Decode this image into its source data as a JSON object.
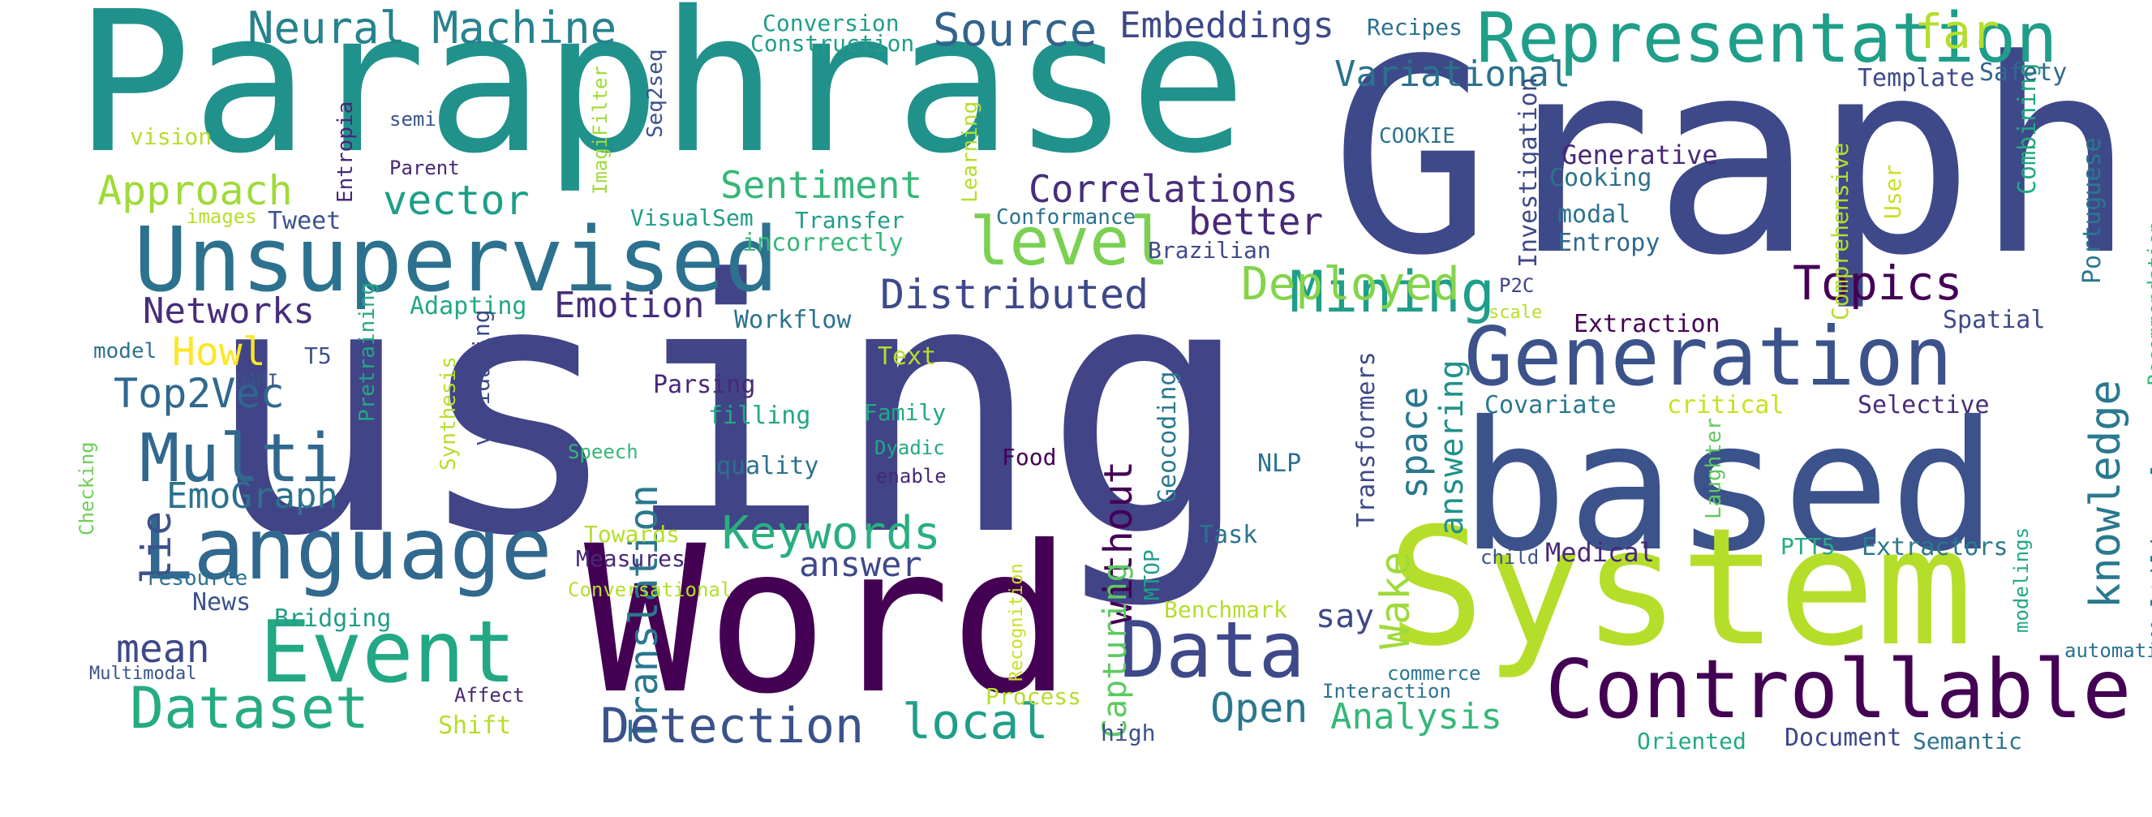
{
  "palette": {
    "dark_purple": "#440154",
    "purple": "#482878",
    "indigo": "#3e4989",
    "blue": "#31688e",
    "teal_blue": "#26828e",
    "teal": "#1f9e89",
    "green": "#35b779",
    "lime": "#6ece58",
    "yellow_green": "#b5de2b",
    "yellow": "#fde725"
  },
  "words": [
    {
      "text": "Paraphrase",
      "color": "#21918c"
    },
    {
      "text": "Graph",
      "color": "#3e4989"
    },
    {
      "text": "using",
      "color": "#414487"
    },
    {
      "text": "based",
      "color": "#3b528b"
    },
    {
      "text": "Word",
      "color": "#440154"
    },
    {
      "text": "System",
      "color": "#b5de2b"
    },
    {
      "text": "Unsupervised",
      "color": "#2c728e"
    },
    {
      "text": "Language",
      "color": "#31688e"
    },
    {
      "text": "Controllable",
      "color": "#440154"
    },
    {
      "text": "Generation",
      "color": "#3b528b"
    },
    {
      "text": "Representation",
      "color": "#1f9e89"
    },
    {
      "text": "Event",
      "color": "#22a884"
    },
    {
      "text": "Data",
      "color": "#3e4989"
    },
    {
      "text": "Multi",
      "color": "#31688e"
    },
    {
      "text": "Dataset",
      "color": "#25ab82"
    },
    {
      "text": "level",
      "color": "#7ad151"
    },
    {
      "text": "Translation",
      "color": "#2a788e"
    },
    {
      "text": "knowledge",
      "color": "#2a788e"
    },
    {
      "text": "Mining",
      "color": "#1f9e89"
    },
    {
      "text": "Neural Machine",
      "color": "#26828e"
    },
    {
      "text": "Source",
      "color": "#33638d"
    },
    {
      "text": "Embeddings",
      "color": "#3e4989"
    },
    {
      "text": "Variational",
      "color": "#2c728e"
    },
    {
      "text": "far",
      "color": "#b5de2b"
    },
    {
      "text": "Distributed",
      "color": "#3e4989"
    },
    {
      "text": "Deployed",
      "color": "#84d44b"
    },
    {
      "text": "Topics",
      "color": "#440154"
    },
    {
      "text": "Correlations",
      "color": "#472d7b"
    },
    {
      "text": "better",
      "color": "#482878"
    },
    {
      "text": "vector",
      "color": "#1f9e89"
    },
    {
      "text": "Sentiment",
      "color": "#35b779"
    },
    {
      "text": "Approach",
      "color": "#a0da39"
    },
    {
      "text": "Keywords",
      "color": "#29af7f"
    },
    {
      "text": "Detection",
      "color": "#3b528b"
    },
    {
      "text": "local",
      "color": "#1f9e89"
    },
    {
      "text": "Open",
      "color": "#2a788e"
    },
    {
      "text": "Analysis",
      "color": "#35b779"
    },
    {
      "text": "Wake",
      "color": "#9fda3a"
    },
    {
      "text": "space",
      "color": "#2a788e"
    },
    {
      "text": "answering",
      "color": "#21918c"
    },
    {
      "text": "without",
      "color": "#440154"
    },
    {
      "text": "Capturing",
      "color": "#5ec962"
    },
    {
      "text": "Emotion",
      "color": "#472d7b"
    },
    {
      "text": "Networks",
      "color": "#472d7b"
    },
    {
      "text": "Top2Vec",
      "color": "#31688e"
    },
    {
      "text": "EmoGraph",
      "color": "#2c728e"
    },
    {
      "text": "mean",
      "color": "#3e4989"
    },
    {
      "text": "lie",
      "color": "#3b528b"
    },
    {
      "text": "answer",
      "color": "#3e4989"
    },
    {
      "text": "say",
      "color": "#3e4989"
    },
    {
      "text": "Howl",
      "color": "#fde725"
    },
    {
      "text": "Extractors",
      "color": "#2a788e"
    },
    {
      "text": "Medical",
      "color": "#482878"
    },
    {
      "text": "PTT5",
      "color": "#25ab82"
    },
    {
      "text": "Multilingual",
      "color": "#2a788e"
    },
    {
      "text": "Selective",
      "color": "#472d7b"
    },
    {
      "text": "Covariate",
      "color": "#2a788e"
    },
    {
      "text": "critical",
      "color": "#c8e020"
    },
    {
      "text": "Spatial",
      "color": "#3e4989"
    },
    {
      "text": "Extraction",
      "color": "#440154"
    },
    {
      "text": "Generative",
      "color": "#482878"
    },
    {
      "text": "Cooking",
      "color": "#2c728e"
    },
    {
      "text": "modal",
      "color": "#2c728e"
    },
    {
      "text": "Entropy",
      "color": "#31688e"
    },
    {
      "text": "Combining",
      "color": "#22a884"
    },
    {
      "text": "Portuguese",
      "color": "#2a788e"
    },
    {
      "text": "User",
      "color": "#c8e020"
    },
    {
      "text": "Comprehensive",
      "color": "#b5de2b"
    },
    {
      "text": "Investigation",
      "color": "#3e4989"
    },
    {
      "text": "Recommendation",
      "color": "#35b779"
    },
    {
      "text": "Template",
      "color": "#3e4989"
    },
    {
      "text": "Safety",
      "color": "#31688e"
    },
    {
      "text": "Recipes",
      "color": "#2c728e"
    },
    {
      "text": "COOKIE",
      "color": "#2c728e"
    },
    {
      "text": "P2C",
      "color": "#414487"
    },
    {
      "text": "scale",
      "color": "#b5de2b"
    },
    {
      "text": "Transformers",
      "color": "#3e4989"
    },
    {
      "text": "Laughter",
      "color": "#5ec962"
    },
    {
      "text": "modelings",
      "color": "#22a884"
    },
    {
      "text": "automatic",
      "color": "#2c728e"
    },
    {
      "text": "child",
      "color": "#3b528b"
    },
    {
      "text": "commerce",
      "color": "#2a788e"
    },
    {
      "text": "Interaction",
      "color": "#2c728e"
    },
    {
      "text": "Oriented",
      "color": "#22a884"
    },
    {
      "text": "Document",
      "color": "#3e4989"
    },
    {
      "text": "Semantic",
      "color": "#2c728e"
    },
    {
      "text": "Conversion",
      "color": "#1f9e89"
    },
    {
      "text": "Construction",
      "color": "#1f9e89"
    },
    {
      "text": "ImagiFilter",
      "color": "#a0da39"
    },
    {
      "text": "Seq2seq",
      "color": "#3b528b"
    },
    {
      "text": "Learning",
      "color": "#b5de2b"
    },
    {
      "text": "vision",
      "color": "#b5de2b"
    },
    {
      "text": "semi",
      "color": "#3b528b"
    },
    {
      "text": "Entropia",
      "color": "#482878"
    },
    {
      "text": "Parent",
      "color": "#482878"
    },
    {
      "text": "images",
      "color": "#b5de2b"
    },
    {
      "text": "Tweet",
      "color": "#3b528b"
    },
    {
      "text": "VisualSem",
      "color": "#1f9e89"
    },
    {
      "text": "Transfer",
      "color": "#1f9e89"
    },
    {
      "text": "Conformance",
      "color": "#2c728e"
    },
    {
      "text": "Brazilian",
      "color": "#3e4989"
    },
    {
      "text": "incorrectly",
      "color": "#35b779"
    },
    {
      "text": "Adapting",
      "color": "#22a884"
    },
    {
      "text": "Workflow",
      "color": "#2c728e"
    },
    {
      "text": "Text",
      "color": "#b5de2b"
    },
    {
      "text": "Parsing",
      "color": "#482878"
    },
    {
      "text": "filling",
      "color": "#22a884"
    },
    {
      "text": "Family",
      "color": "#22a884"
    },
    {
      "text": "Food",
      "color": "#440154"
    },
    {
      "text": "quality",
      "color": "#2c728e"
    },
    {
      "text": "Dyadic",
      "color": "#22a884"
    },
    {
      "text": "enable",
      "color": "#482878"
    },
    {
      "text": "Speech",
      "color": "#35b779"
    },
    {
      "text": "Towards",
      "color": "#b5de2b"
    },
    {
      "text": "Measures",
      "color": "#482878"
    },
    {
      "text": "Conversational",
      "color": "#b5de2b"
    },
    {
      "text": "Recognition",
      "color": "#c8e020"
    },
    {
      "text": "MTOP",
      "color": "#1f9e89"
    },
    {
      "text": "Geocoding",
      "color": "#2a788e"
    },
    {
      "text": "NLP",
      "color": "#2c728e"
    },
    {
      "text": "Task",
      "color": "#2c728e"
    },
    {
      "text": "Benchmark",
      "color": "#b5de2b"
    },
    {
      "text": "Process",
      "color": "#b5de2b"
    },
    {
      "text": "high",
      "color": "#3b528b"
    },
    {
      "text": "Shift",
      "color": "#b5de2b"
    },
    {
      "text": "Affect",
      "color": "#482878"
    },
    {
      "text": "Bridging",
      "color": "#1f9e89"
    },
    {
      "text": "News",
      "color": "#3b528b"
    },
    {
      "text": "resource",
      "color": "#2c728e"
    },
    {
      "text": "Multimodal",
      "color": "#3b528b"
    },
    {
      "text": "Checking",
      "color": "#6ece58"
    },
    {
      "text": "Synthesis",
      "color": "#b5de2b"
    },
    {
      "text": "validating",
      "color": "#3e4989"
    },
    {
      "text": "Pretraining",
      "color": "#22a884"
    },
    {
      "text": "T5",
      "color": "#3b528b"
    },
    {
      "text": "model",
      "color": "#2c728e"
    },
    {
      "text": "DAMI",
      "color": "#3b528b"
    }
  ]
}
